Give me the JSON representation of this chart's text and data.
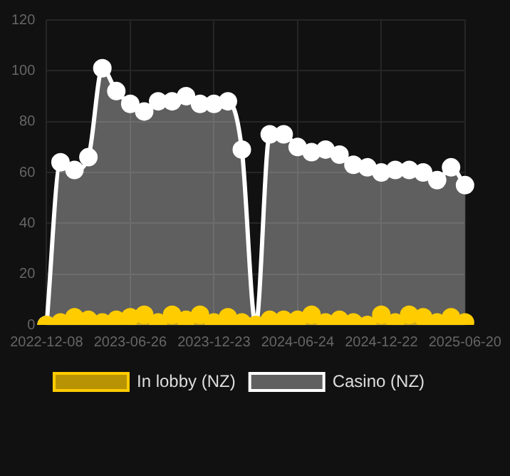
{
  "chart_data": {
    "type": "area",
    "categories": [
      "2022-12-08",
      null,
      null,
      null,
      null,
      null,
      "2023-06-26",
      null,
      null,
      null,
      null,
      null,
      "2023-12-23",
      null,
      null,
      null,
      null,
      null,
      "2024-06-24",
      null,
      null,
      null,
      null,
      null,
      "2024-12-22",
      null,
      null,
      null,
      null,
      null,
      "2025-06-20"
    ],
    "series": [
      {
        "name": "In lobby (NZ)",
        "color": "#ffcc00",
        "values": [
          0,
          1,
          3,
          2,
          1,
          2,
          3,
          4,
          1,
          4,
          2,
          4,
          1,
          3,
          1,
          0,
          2,
          2,
          2,
          4,
          1,
          2,
          1,
          0,
          4,
          1,
          4,
          3,
          1,
          3,
          1
        ]
      },
      {
        "name": "Casino (NZ)",
        "color": "#ffffff",
        "values": [
          0,
          64,
          61,
          66,
          101,
          92,
          87,
          84,
          88,
          88,
          90,
          87,
          87,
          88,
          69,
          0,
          75,
          75,
          70,
          68,
          69,
          67,
          63,
          62,
          60,
          61,
          61,
          60,
          57,
          62,
          55
        ]
      }
    ],
    "ylim": [
      0,
      120
    ],
    "yticks": [
      0,
      20,
      40,
      60,
      80,
      100,
      120
    ],
    "grid": true,
    "legend": "bottom",
    "marker": "circle"
  }
}
